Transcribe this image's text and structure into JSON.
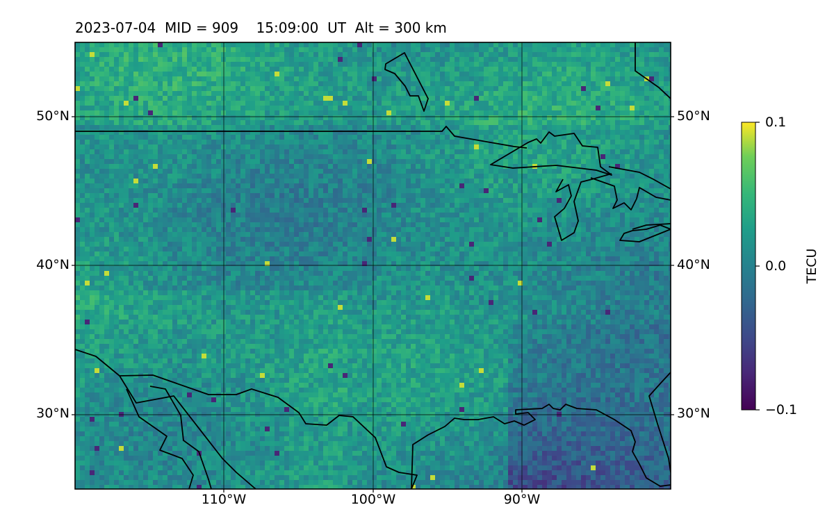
{
  "title": "2023-07-04  MID = 909    15:09:00  UT  Alt = 300 km",
  "map": {
    "type": "heatmap",
    "extent": {
      "lon": [
        -120,
        -80
      ],
      "lat": [
        25,
        55
      ]
    },
    "lat_labels": [
      "50°N",
      "40°N",
      "30°N"
    ],
    "lon_labels": [
      "110°W",
      "100°W",
      "90°W"
    ],
    "gridlines": true
  },
  "colorbar": {
    "label": "TECU",
    "colormap": "viridis",
    "range": [
      -0.1,
      0.1
    ],
    "ticks": [
      "0.1",
      "0.0",
      "−0.1"
    ]
  },
  "colors": {
    "frame": "#000000",
    "coastline": "#000000",
    "grid": "#000000"
  }
}
